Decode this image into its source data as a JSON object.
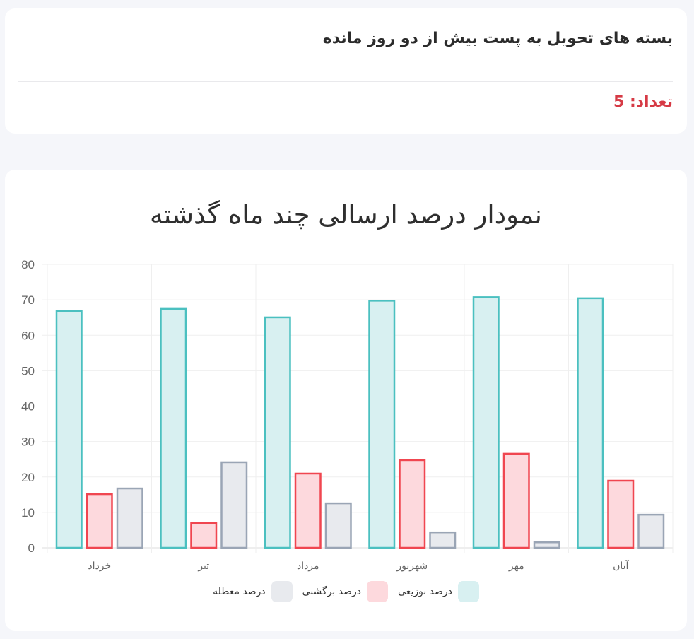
{
  "summary_card": {
    "title": "بسته های تحویل به پست بیش از دو روز مانده",
    "count_label": "تعداد: 5",
    "count_color": "#d63a45"
  },
  "chart_card": {
    "title": "نمودار درصد ارسالی چند ماه گذشته"
  },
  "legend": [
    {
      "label": "درصد توزیعی",
      "color": "#d8f0f1",
      "border": "#4bc0c0"
    },
    {
      "label": "درصد برگشتی",
      "color": "#fdd9dd",
      "border": "#f04650"
    },
    {
      "label": "درصد معطله",
      "color": "#e8eaee",
      "border": "#9aa5b5"
    }
  ],
  "chart_data": {
    "type": "bar",
    "title": "نمودار درصد ارسالی چند ماه گذشته",
    "xlabel": "",
    "ylabel": "",
    "categories": [
      "خرداد",
      "تیر",
      "مرداد",
      "شهریور",
      "مهر",
      "آبان"
    ],
    "series": [
      {
        "name": "درصد توزیعی",
        "values": [
          67.1,
          67.7,
          65.3,
          70.0,
          71.0,
          70.7
        ],
        "fill": "#d8f0f1",
        "stroke": "#4bc0c0"
      },
      {
        "name": "درصد برگشتی",
        "values": [
          15.4,
          7.2,
          21.2,
          25.0,
          26.8,
          19.2
        ],
        "fill": "#fdd9dd",
        "stroke": "#f04650"
      },
      {
        "name": "درصد معطله",
        "values": [
          17.0,
          24.4,
          12.8,
          4.6,
          1.8,
          9.6
        ],
        "fill": "#e8eaee",
        "stroke": "#9aa5b5"
      }
    ],
    "ylim": [
      0,
      80
    ],
    "yticks": [
      0,
      10,
      20,
      30,
      40,
      50,
      60,
      70,
      80
    ],
    "grid": true,
    "legend_position": "bottom"
  }
}
